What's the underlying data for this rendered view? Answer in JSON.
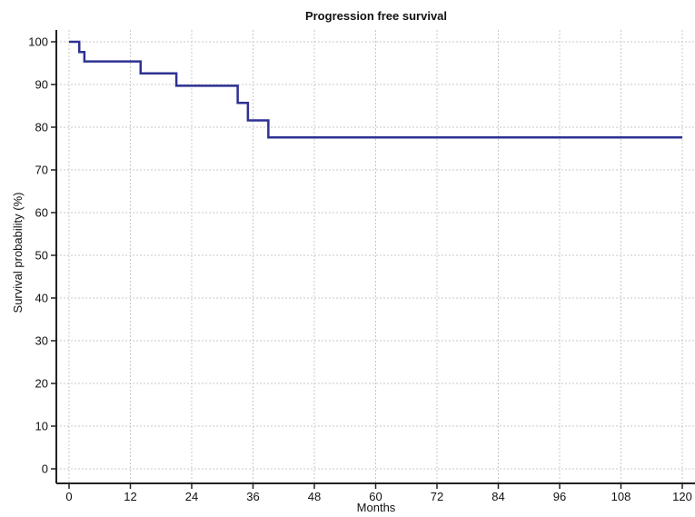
{
  "chart_data": {
    "type": "line",
    "title": "Progression free survival",
    "xlabel": "Months",
    "ylabel": "Survival probability (%)",
    "xlim": [
      0,
      120
    ],
    "ylim": [
      0,
      100
    ],
    "xticks": [
      0,
      12,
      24,
      36,
      48,
      60,
      72,
      84,
      96,
      108,
      120
    ],
    "yticks": [
      0,
      10,
      20,
      30,
      40,
      50,
      60,
      70,
      80,
      90,
      100
    ],
    "grid": true,
    "legend": "none",
    "step": true,
    "series": [
      {
        "color": "#2e3192",
        "x": [
          0,
          2,
          3,
          14,
          21,
          33,
          35,
          39,
          120
        ],
        "y": [
          100,
          97.6,
          95.4,
          92.6,
          89.7,
          85.7,
          81.6,
          77.6,
          77.6
        ]
      }
    ]
  }
}
